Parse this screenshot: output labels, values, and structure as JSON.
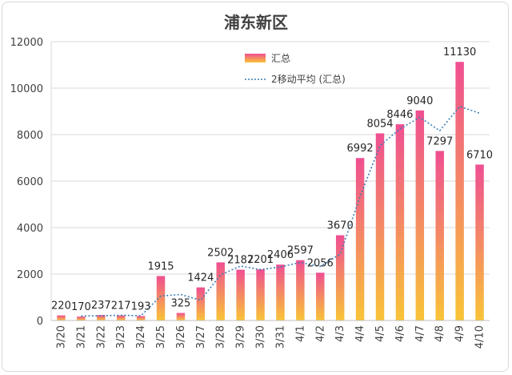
{
  "chart_data": {
    "type": "bar",
    "title": "浦东新区",
    "categories": [
      "3/20",
      "3/21",
      "3/22",
      "3/23",
      "3/24",
      "3/25",
      "3/26",
      "3/27",
      "3/28",
      "3/29",
      "3/30",
      "3/31",
      "4/1",
      "4/2",
      "4/3",
      "4/4",
      "4/5",
      "4/6",
      "4/7",
      "4/8",
      "4/9",
      "4/10"
    ],
    "series": [
      {
        "name": "汇总",
        "values": [
          220,
          170,
          237,
          217,
          193,
          1915,
          325,
          1424,
          2502,
          2187,
          2201,
          2406,
          2597,
          2056,
          3670,
          6992,
          8054,
          8446,
          9040,
          7297,
          11130,
          6710
        ],
        "labels": [
          "220",
          "170",
          "237",
          "217",
          "193",
          "1915",
          "325",
          "1424",
          "2502",
          "2187",
          "2201",
          "2406",
          "2597",
          "2056",
          "3670",
          "6992",
          "8054",
          "8446",
          "9040",
          "7297",
          "11130",
          "6710"
        ]
      }
    ],
    "trendline": {
      "name": "2移动平均 (汇总)",
      "type": "moving-average",
      "period": 2
    },
    "ylim": [
      0,
      12000
    ],
    "yticks": [
      "0",
      "2000",
      "4000",
      "6000",
      "8000",
      "10000",
      "12000"
    ],
    "grid": true,
    "legend": "top-center",
    "colors": {
      "bar_top": "#ef4f91",
      "bar_bottom": "#f9c437",
      "trend": "#3a7fb8",
      "grid": "#d9d9d9"
    }
  }
}
